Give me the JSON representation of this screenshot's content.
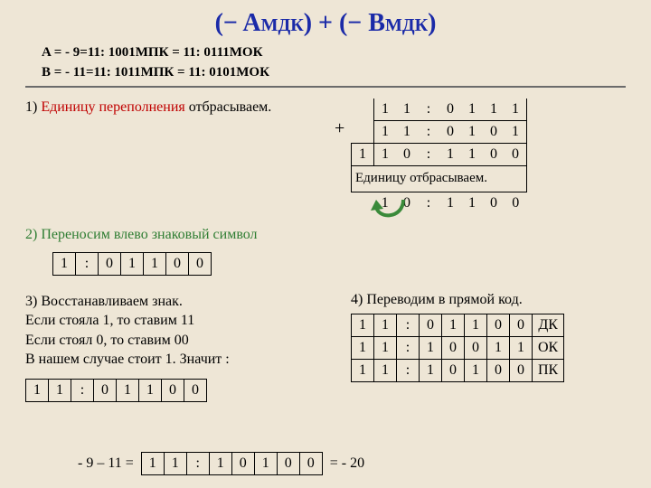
{
  "title_html": "(− A<sub>МДК</sub>) + (− B<sub>МДК</sub>)",
  "eq_a": "A = - 9=11: 1001МПК = 11: 0111МОК",
  "eq_b": "B =  - 11=11: 1011МПК = 11: 0101МОК",
  "step1_label": "1) ",
  "step1_red": "Единицу переполнения",
  "step1_rest": " отбрасываем.",
  "step2": "2) Переносим влево знаковый символ",
  "bits2": {
    "cells": [
      "1",
      ":",
      "0",
      "1",
      "1",
      "0",
      "0"
    ]
  },
  "step3_title": "3) Восстанавливаем знак.",
  "step3_l1": "Если стояла 1, то ставим 11",
  "step3_l2": "Если стоял 0, то ставим 00",
  "step3_l3": "В нашем случае стоит 1. Значит :",
  "bits3": {
    "cells": [
      "1",
      "1",
      ":",
      "0",
      "1",
      "1",
      "0",
      "0"
    ]
  },
  "step4": "4) Переводим в прямой код.",
  "addition": {
    "row_a": [
      "",
      "1",
      "1",
      ":",
      "0",
      "1",
      "1",
      "1"
    ],
    "row_b": [
      "",
      "1",
      "1",
      ":",
      "0",
      "1",
      "0",
      "1"
    ],
    "row_sum": [
      "1",
      "1",
      "0",
      ":",
      "1",
      "1",
      "0",
      "0"
    ],
    "note": "Единицу отбрасываем.",
    "row_final": [
      "",
      "1",
      "0",
      ":",
      "1",
      "1",
      "0",
      "0"
    ]
  },
  "codes": {
    "rows": [
      {
        "bits": [
          "1",
          "1",
          ":",
          "0",
          "1",
          "1",
          "0",
          "0"
        ],
        "label": "ДК"
      },
      {
        "bits": [
          "1",
          "1",
          ":",
          "1",
          "0",
          "0",
          "1",
          "1"
        ],
        "label": "ОК"
      },
      {
        "bits": [
          "1",
          "1",
          ":",
          "1",
          "0",
          "1",
          "0",
          "0"
        ],
        "label": "ПК"
      }
    ]
  },
  "final": {
    "prefix": "- 9 – 11 = ",
    "bits": [
      "1",
      "1",
      ":",
      "1",
      "0",
      "1",
      "0",
      "0"
    ],
    "suffix": " = - 20"
  },
  "colors": {
    "bg": "#eee6d6",
    "title": "#1a2aa8",
    "red": "#c00000",
    "green": "#2e7d32",
    "arrow": "#3a8a3a"
  }
}
